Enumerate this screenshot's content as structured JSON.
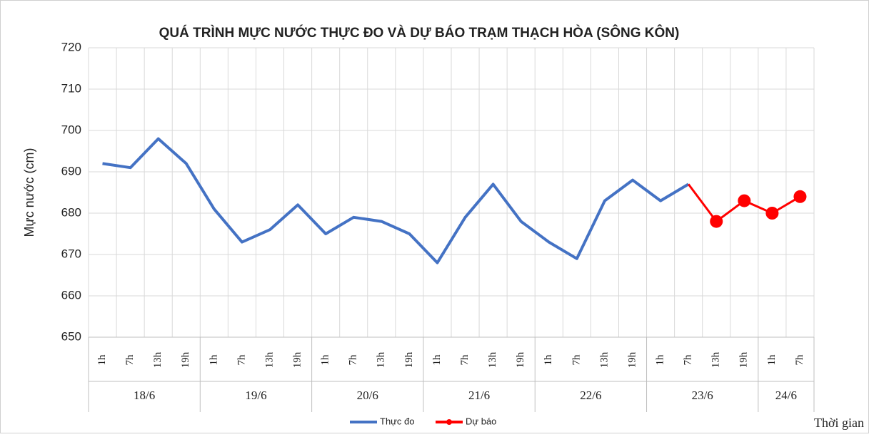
{
  "chart_data": {
    "type": "line",
    "title": "QUÁ TRÌNH MỰC NƯỚC THỰC ĐO VÀ DỰ BÁO TRẠM THẠCH HÒA (SÔNG KÔN)",
    "y_label": "Mực nước (cm)",
    "x_label": "Thời gian",
    "categories": [
      "1h",
      "7h",
      "13h",
      "19h",
      "1h",
      "7h",
      "13h",
      "19h",
      "1h",
      "7h",
      "13h",
      "19h",
      "1h",
      "7h",
      "13h",
      "19h",
      "1h",
      "7h",
      "13h",
      "19h",
      "1h",
      "7h",
      "13h",
      "19h",
      "1h",
      "7h"
    ],
    "x_groups": [
      "18/6",
      "19/6",
      "20/6",
      "21/6",
      "22/6",
      "23/6",
      "24/6"
    ],
    "series": [
      {
        "name": "Thực đo",
        "color": "#4472c4",
        "values": [
          692,
          691,
          698,
          692,
          681,
          673,
          676,
          682,
          675,
          679,
          678,
          675,
          668,
          679,
          687,
          678,
          673,
          669,
          683,
          688,
          683,
          687,
          null,
          null,
          null,
          null
        ]
      },
      {
        "name": "Dự báo",
        "color": "#ff0000",
        "values": [
          null,
          null,
          null,
          null,
          null,
          null,
          null,
          null,
          null,
          null,
          null,
          null,
          null,
          null,
          null,
          null,
          null,
          null,
          null,
          null,
          null,
          687,
          678,
          683,
          680,
          684
        ]
      }
    ],
    "ylim": [
      650,
      720
    ],
    "yticks": [
      650,
      660,
      670,
      680,
      690,
      700,
      710,
      720
    ],
    "grid": true,
    "legend": "bottom"
  }
}
